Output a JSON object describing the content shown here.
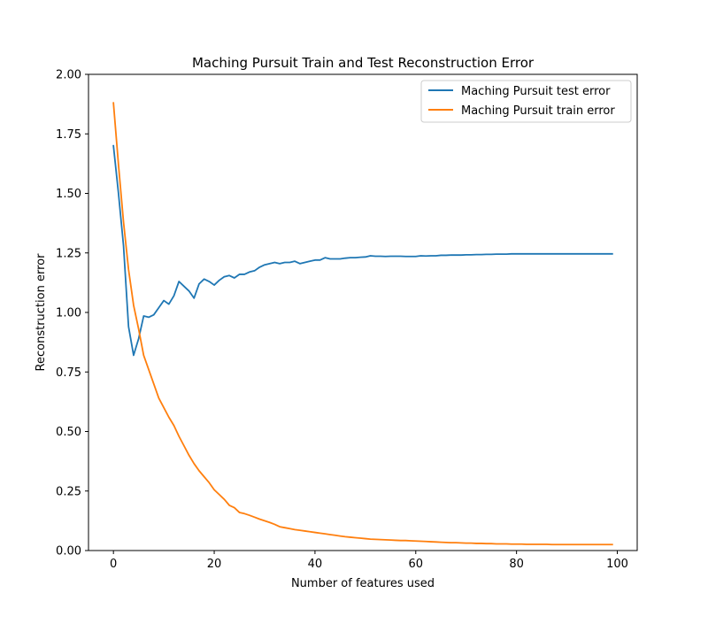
{
  "chart_data": {
    "type": "line",
    "title": "Maching Pursuit Train and Test Reconstruction Error",
    "xlabel": "Number of features used",
    "ylabel": "Reconstruction error",
    "xlim": [
      -4.95,
      103.95
    ],
    "ylim": [
      0,
      2
    ],
    "xticks": [
      0,
      20,
      40,
      60,
      80,
      100
    ],
    "xtick_labels": [
      "0",
      "20",
      "40",
      "60",
      "80",
      "100"
    ],
    "yticks": [
      0,
      0.25,
      0.5,
      0.75,
      1.0,
      1.25,
      1.5,
      1.75,
      2.0
    ],
    "ytick_labels": [
      "0.00",
      "0.25",
      "0.50",
      "0.75",
      "1.00",
      "1.25",
      "1.50",
      "1.75",
      "2.00"
    ],
    "grid": false,
    "legend_position": "upper right",
    "series": [
      {
        "name": "Maching Pursuit test error",
        "color": "#1f77b4",
        "x": [
          0,
          1,
          2,
          3,
          4,
          5,
          6,
          7,
          8,
          9,
          10,
          11,
          12,
          13,
          14,
          15,
          16,
          17,
          18,
          19,
          20,
          21,
          22,
          23,
          24,
          25,
          26,
          27,
          28,
          29,
          30,
          31,
          32,
          33,
          34,
          35,
          36,
          37,
          38,
          39,
          40,
          41,
          42,
          43,
          44,
          45,
          46,
          47,
          48,
          49,
          50,
          51,
          52,
          53,
          54,
          55,
          56,
          57,
          58,
          59,
          60,
          61,
          62,
          63,
          64,
          65,
          66,
          67,
          68,
          69,
          70,
          71,
          72,
          73,
          74,
          75,
          76,
          77,
          78,
          79,
          80,
          81,
          82,
          83,
          84,
          85,
          86,
          87,
          88,
          89,
          90,
          91,
          92,
          93,
          94,
          95,
          96,
          97,
          98,
          99
        ],
        "y": [
          1.7,
          1.5,
          1.28,
          0.94,
          0.82,
          0.89,
          0.985,
          0.98,
          0.99,
          1.02,
          1.05,
          1.035,
          1.07,
          1.13,
          1.11,
          1.09,
          1.06,
          1.12,
          1.14,
          1.13,
          1.115,
          1.135,
          1.15,
          1.155,
          1.145,
          1.16,
          1.16,
          1.17,
          1.175,
          1.19,
          1.2,
          1.205,
          1.21,
          1.205,
          1.21,
          1.21,
          1.215,
          1.205,
          1.21,
          1.215,
          1.22,
          1.22,
          1.23,
          1.225,
          1.225,
          1.225,
          1.228,
          1.23,
          1.23,
          1.232,
          1.233,
          1.238,
          1.236,
          1.236,
          1.235,
          1.236,
          1.236,
          1.236,
          1.235,
          1.235,
          1.235,
          1.238,
          1.237,
          1.238,
          1.238,
          1.24,
          1.24,
          1.241,
          1.241,
          1.241,
          1.242,
          1.242,
          1.243,
          1.243,
          1.244,
          1.244,
          1.245,
          1.245,
          1.245,
          1.246,
          1.246,
          1.246,
          1.246,
          1.246,
          1.246,
          1.246,
          1.246,
          1.246,
          1.246,
          1.246,
          1.246,
          1.246,
          1.246,
          1.246,
          1.246,
          1.246,
          1.246,
          1.246,
          1.246,
          1.246
        ]
      },
      {
        "name": "Maching Pursuit train error",
        "color": "#ff7f0e",
        "x": [
          0,
          1,
          2,
          3,
          4,
          5,
          6,
          7,
          8,
          9,
          10,
          11,
          12,
          13,
          14,
          15,
          16,
          17,
          18,
          19,
          20,
          21,
          22,
          23,
          24,
          25,
          26,
          27,
          28,
          29,
          30,
          31,
          32,
          33,
          34,
          35,
          36,
          37,
          38,
          39,
          40,
          41,
          42,
          43,
          44,
          45,
          46,
          47,
          48,
          49,
          50,
          51,
          52,
          53,
          54,
          55,
          56,
          57,
          58,
          59,
          60,
          61,
          62,
          63,
          64,
          65,
          66,
          67,
          68,
          69,
          70,
          71,
          72,
          73,
          74,
          75,
          76,
          77,
          78,
          79,
          80,
          81,
          82,
          83,
          84,
          85,
          86,
          87,
          88,
          89,
          90,
          91,
          92,
          93,
          94,
          95,
          96,
          97,
          98,
          99
        ],
        "y": [
          1.88,
          1.62,
          1.38,
          1.18,
          1.03,
          0.93,
          0.82,
          0.76,
          0.7,
          0.64,
          0.6,
          0.56,
          0.525,
          0.48,
          0.44,
          0.4,
          0.365,
          0.335,
          0.31,
          0.285,
          0.255,
          0.235,
          0.215,
          0.19,
          0.18,
          0.16,
          0.155,
          0.148,
          0.14,
          0.132,
          0.125,
          0.118,
          0.11,
          0.1,
          0.096,
          0.092,
          0.088,
          0.085,
          0.082,
          0.079,
          0.076,
          0.073,
          0.07,
          0.067,
          0.064,
          0.061,
          0.058,
          0.056,
          0.054,
          0.052,
          0.05,
          0.048,
          0.047,
          0.046,
          0.045,
          0.044,
          0.043,
          0.042,
          0.042,
          0.041,
          0.04,
          0.039,
          0.038,
          0.037,
          0.036,
          0.035,
          0.034,
          0.033,
          0.033,
          0.032,
          0.031,
          0.031,
          0.03,
          0.03,
          0.029,
          0.029,
          0.028,
          0.028,
          0.028,
          0.027,
          0.027,
          0.027,
          0.026,
          0.026,
          0.026,
          0.026,
          0.026,
          0.025,
          0.025,
          0.025,
          0.025,
          0.025,
          0.025,
          0.025,
          0.025,
          0.025,
          0.025,
          0.025,
          0.025,
          0.025
        ]
      }
    ]
  }
}
